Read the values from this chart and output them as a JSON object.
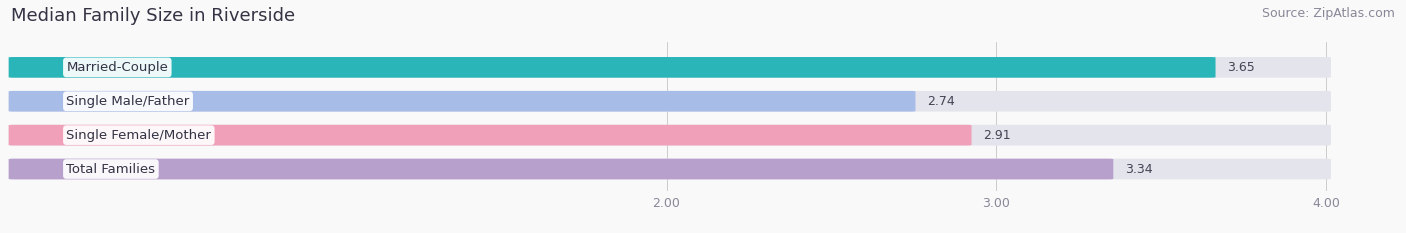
{
  "title": "Median Family Size in Riverside",
  "source": "Source: ZipAtlas.com",
  "categories": [
    "Married-Couple",
    "Single Male/Father",
    "Single Female/Mother",
    "Total Families"
  ],
  "values": [
    3.65,
    2.74,
    2.91,
    3.34
  ],
  "bar_colors": [
    "#2ab5b8",
    "#a8bce8",
    "#f0a0b8",
    "#b8a0cc"
  ],
  "bg_bar_color": "#e4e4ec",
  "x_min": 2.0,
  "x_max": 4.0,
  "x_ticks": [
    2.0,
    3.0,
    4.0
  ],
  "x_tick_labels": [
    "2.00",
    "3.00",
    "4.00"
  ],
  "title_fontsize": 13,
  "source_fontsize": 9,
  "bar_label_fontsize": 9.5,
  "value_fontsize": 9,
  "tick_fontsize": 9,
  "background_color": "#f9f9f9",
  "value_label_colors": [
    "#ffffff",
    "#555566",
    "#555566",
    "#ffffff"
  ]
}
